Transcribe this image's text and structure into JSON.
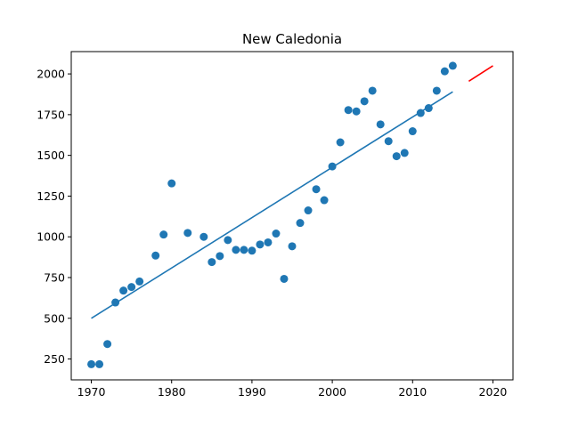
{
  "chart_data": {
    "type": "scatter",
    "title": "New Caledonia",
    "xlabel": "",
    "ylabel": "",
    "xlim": [
      1967.5,
      2022.5
    ],
    "ylim": [
      122,
      2137
    ],
    "xticks": [
      1970,
      1980,
      1990,
      2000,
      2010,
      2020
    ],
    "yticks": [
      250,
      500,
      750,
      1000,
      1250,
      1500,
      1750,
      2000
    ],
    "grid": false,
    "series": [
      {
        "kind": "scatter",
        "color": "#1f77b4",
        "points": [
          [
            1970,
            218
          ],
          [
            1971,
            218
          ],
          [
            1972,
            342
          ],
          [
            1973,
            597
          ],
          [
            1974,
            670
          ],
          [
            1975,
            692
          ],
          [
            1976,
            726
          ],
          [
            1978,
            885
          ],
          [
            1979,
            1014
          ],
          [
            1980,
            1328
          ],
          [
            1982,
            1024
          ],
          [
            1984,
            1000
          ],
          [
            1985,
            845
          ],
          [
            1986,
            882
          ],
          [
            1987,
            980
          ],
          [
            1988,
            920
          ],
          [
            1989,
            920
          ],
          [
            1990,
            915
          ],
          [
            1991,
            953
          ],
          [
            1992,
            966
          ],
          [
            1993,
            1020
          ],
          [
            1994,
            742
          ],
          [
            1995,
            942
          ],
          [
            1996,
            1085
          ],
          [
            1997,
            1162
          ],
          [
            1998,
            1292
          ],
          [
            1999,
            1225
          ],
          [
            2000,
            1432
          ],
          [
            2001,
            1580
          ],
          [
            2002,
            1778
          ],
          [
            2003,
            1770
          ],
          [
            2004,
            1832
          ],
          [
            2005,
            1897
          ],
          [
            2006,
            1690
          ],
          [
            2007,
            1587
          ],
          [
            2008,
            1495
          ],
          [
            2009,
            1515
          ],
          [
            2010,
            1648
          ],
          [
            2011,
            1760
          ],
          [
            2012,
            1790
          ],
          [
            2013,
            1897
          ],
          [
            2014,
            2016
          ],
          [
            2015,
            2050
          ]
        ]
      },
      {
        "kind": "line",
        "color": "#1f77b4",
        "points": [
          [
            1970,
            500
          ],
          [
            2015,
            1890
          ]
        ]
      },
      {
        "kind": "line",
        "color": "#ff0000",
        "points": [
          [
            2017,
            1955
          ],
          [
            2020,
            2050
          ]
        ]
      }
    ]
  }
}
